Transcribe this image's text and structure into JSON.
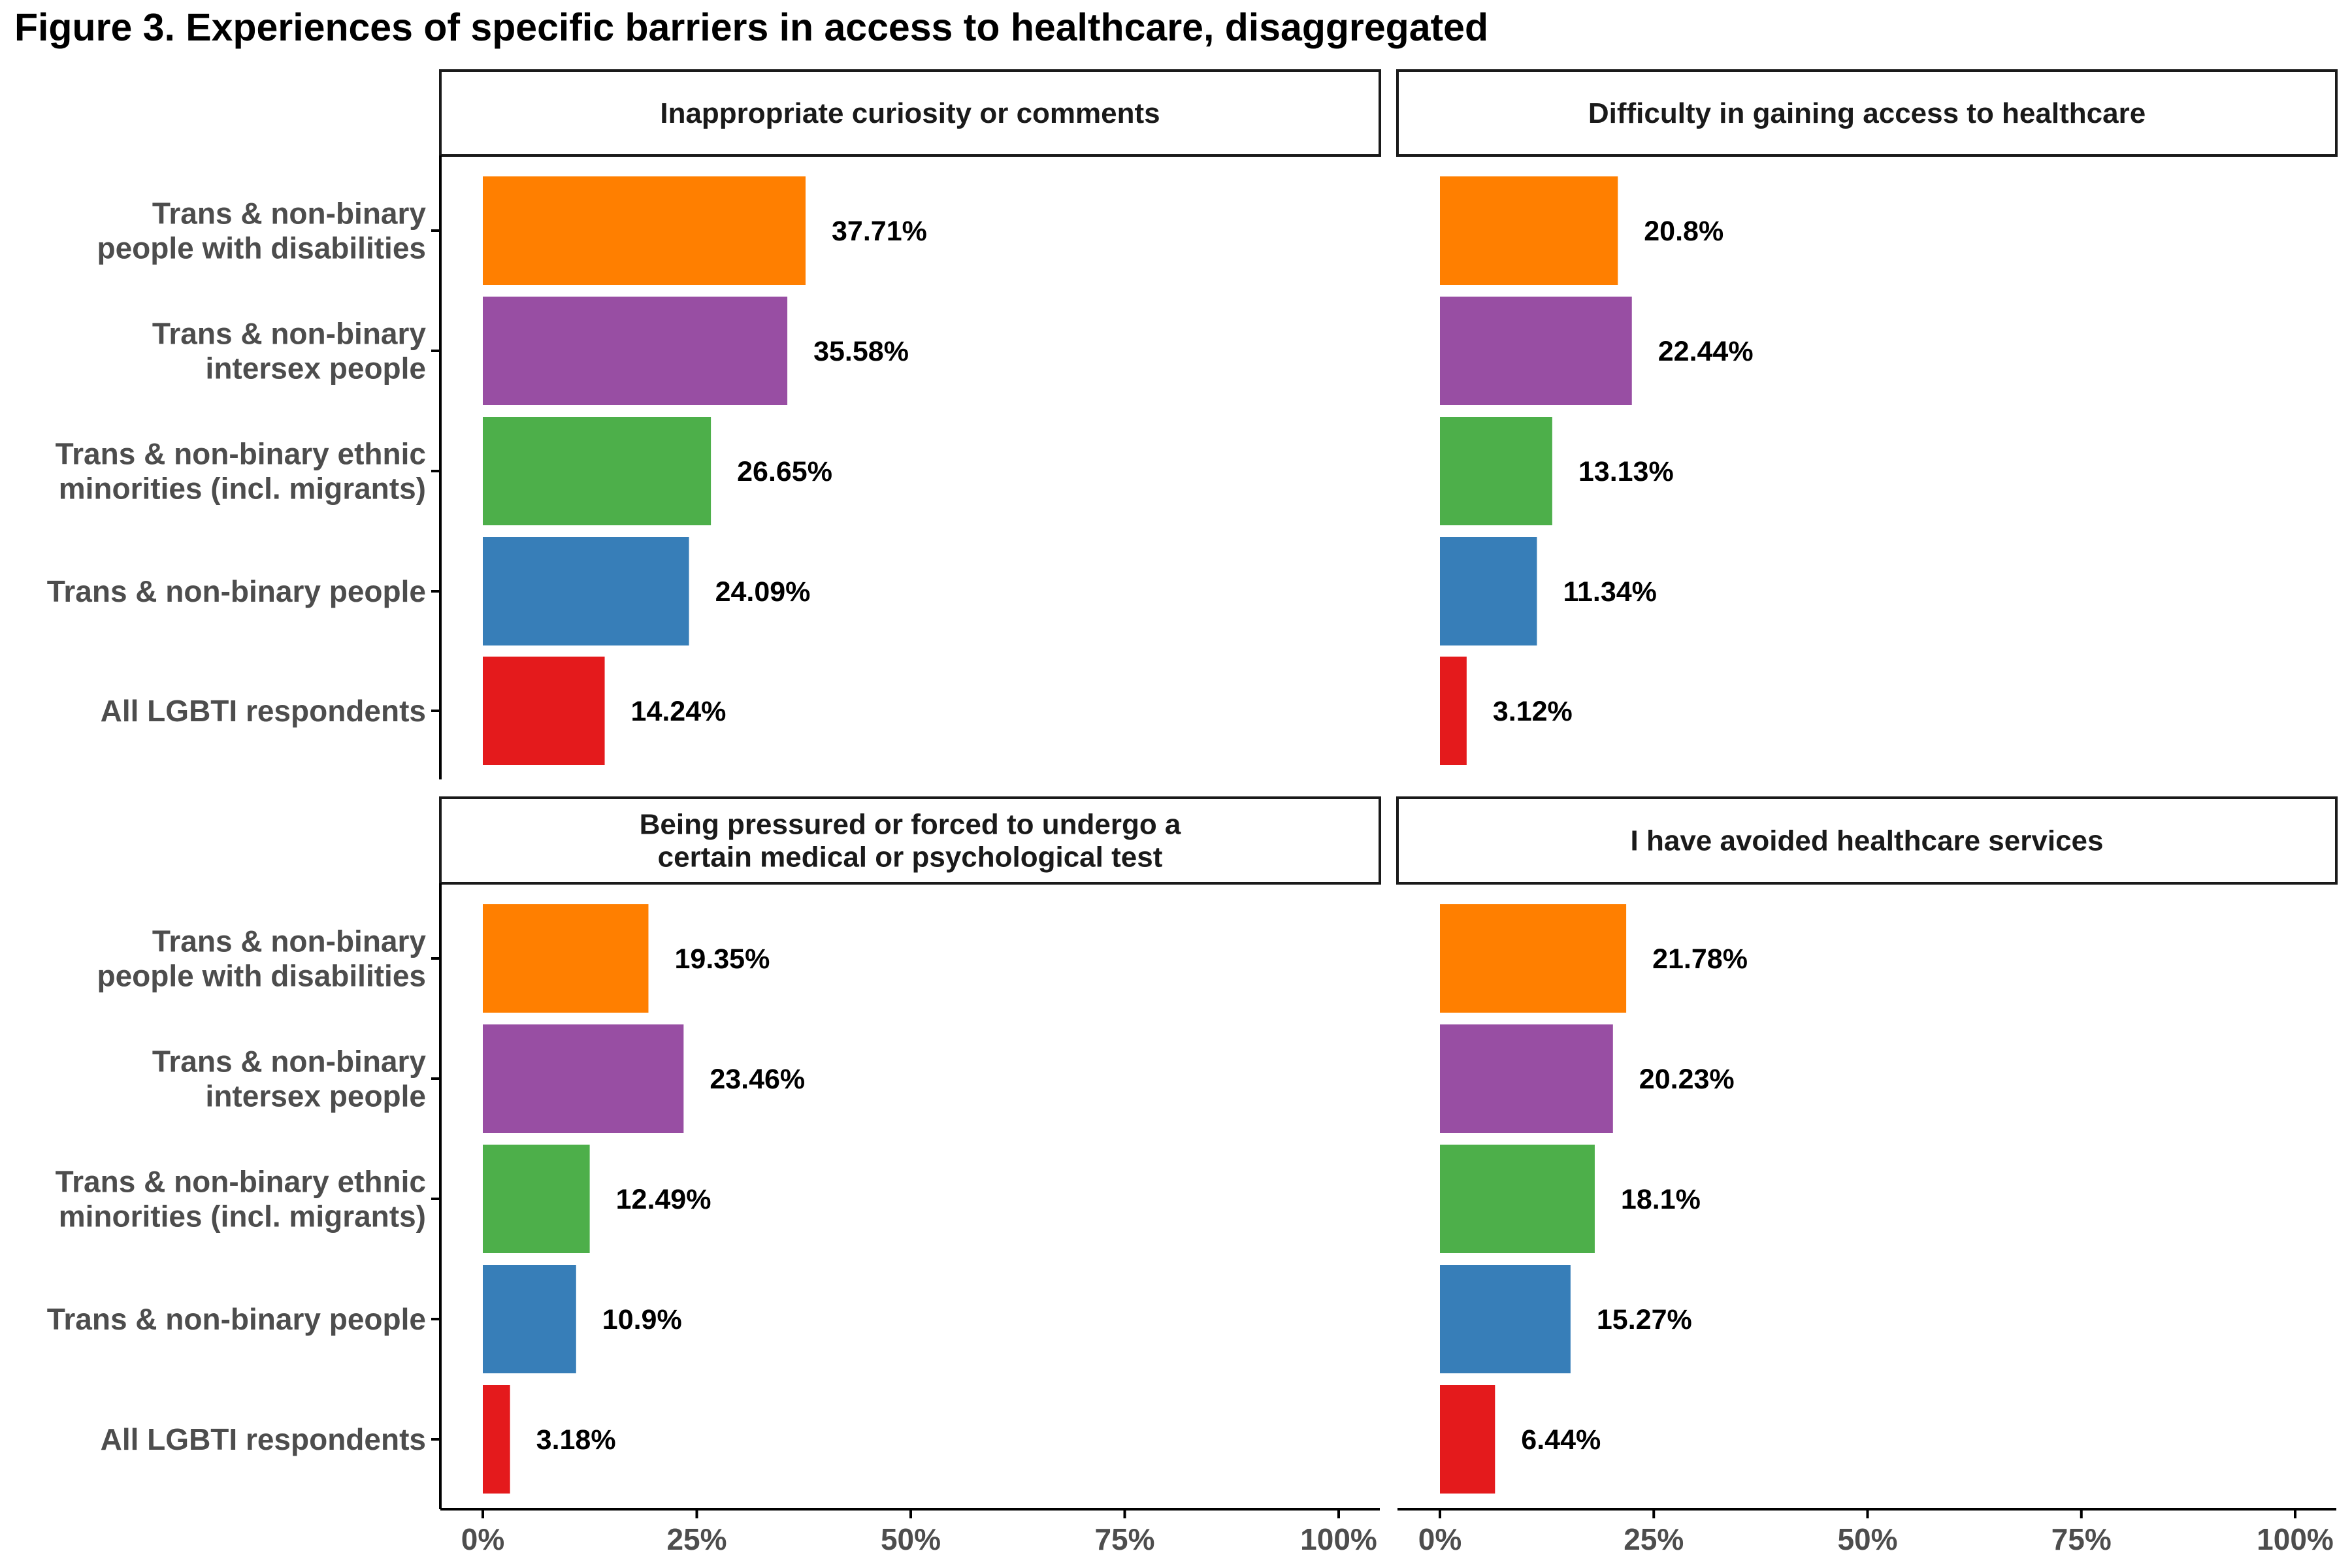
{
  "title": "Figure 3. Experiences of specific barriers in access to healthcare, disaggregated",
  "chart_data": {
    "type": "bar",
    "orientation": "horizontal",
    "facets": 4,
    "layout": "2x2",
    "categories": [
      "Trans & non-binary\npeople with disabilities",
      "Trans & non-binary\nintersex people",
      "Trans & non-binary ethnic\nminorities (incl. migrants)",
      "Trans & non-binary people",
      "All LGBTI respondents"
    ],
    "colors": [
      "#FF7F00",
      "#984EA3",
      "#4DAF4A",
      "#377EB8",
      "#E41A1C"
    ],
    "xlim": [
      0,
      100
    ],
    "xticks": [
      "0%",
      "25%",
      "50%",
      "75%",
      "100%"
    ],
    "grid": false,
    "legend": "none",
    "panels": [
      {
        "title": "Inappropriate curiosity or comments",
        "values": [
          37.71,
          35.58,
          26.65,
          24.09,
          14.24
        ],
        "labels": [
          "37.71%",
          "35.58%",
          "26.65%",
          "24.09%",
          "14.24%"
        ]
      },
      {
        "title": "Difficulty in gaining access to healthcare",
        "values": [
          20.8,
          22.44,
          13.13,
          11.34,
          3.12
        ],
        "labels": [
          "20.8%",
          "22.44%",
          "13.13%",
          "11.34%",
          "3.12%"
        ]
      },
      {
        "title": "Being pressured or forced to undergo a\ncertain medical or psychological test",
        "values": [
          19.35,
          23.46,
          12.49,
          10.9,
          3.18
        ],
        "labels": [
          "19.35%",
          "23.46%",
          "12.49%",
          "10.9%",
          "3.18%"
        ]
      },
      {
        "title": "I have avoided healthcare services",
        "values": [
          21.78,
          20.23,
          18.1,
          15.27,
          6.44
        ],
        "labels": [
          "21.78%",
          "20.23%",
          "18.1%",
          "15.27%",
          "6.44%"
        ]
      }
    ]
  }
}
